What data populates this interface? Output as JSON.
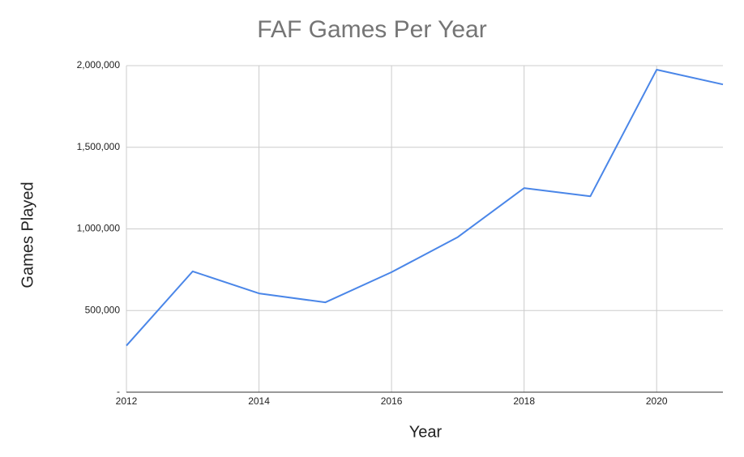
{
  "chart_data": {
    "type": "line",
    "title": "FAF Games Per Year",
    "x_label": "Year",
    "y_label": "Games Played",
    "x": [
      2012,
      2013,
      2014,
      2015,
      2016,
      2017,
      2018,
      2019,
      2020,
      2021
    ],
    "values": [
      285000,
      740000,
      605000,
      550000,
      735000,
      950000,
      1250000,
      1200000,
      1975000,
      1885000
    ],
    "color": "#4a86e8",
    "xlim": [
      2012,
      2021
    ],
    "xticks": [
      2012,
      2014,
      2016,
      2018,
      2020
    ],
    "ylim": [
      0,
      2000000
    ],
    "yticks": [
      {
        "value": 0,
        "label": "-"
      },
      {
        "value": 500000,
        "label": "500,000"
      },
      {
        "value": 1000000,
        "label": "1,000,000"
      },
      {
        "value": 1500000,
        "label": "1,500,000"
      },
      {
        "value": 2000000,
        "label": "2,000,000"
      }
    ],
    "grid": true
  }
}
